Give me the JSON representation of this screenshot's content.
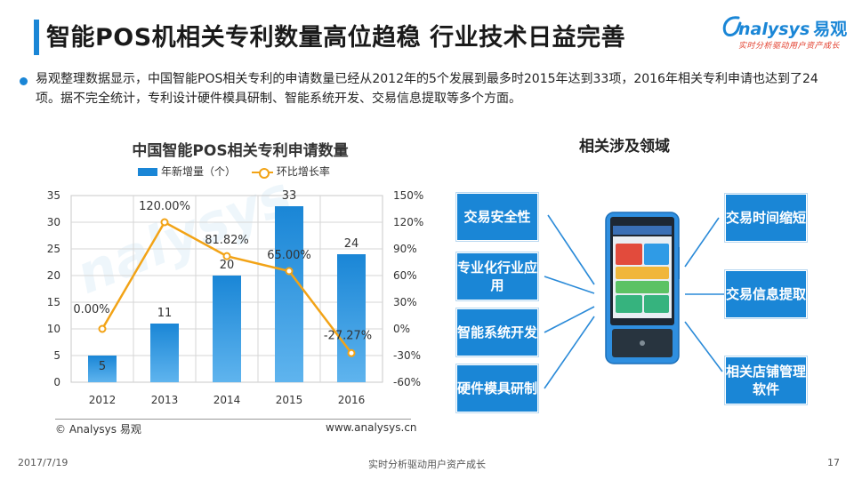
{
  "header": {
    "title": "智能POS机相关专利数量高位趋稳 行业技术日益完善",
    "logo_text": "nalysys",
    "logo_cn": "易观",
    "logo_sub": "实时分析驱动用户资产成长"
  },
  "description": "易观整理数据显示，中国智能POS相关专利的申请数量已经从2012年的5个发展到最多时2015年达到33项，2016年相关专利申请也达到了24项。据不完全统计，专利设计硬件模具研制、智能系统开发、交易信息提取等多个方面。",
  "chart_data": {
    "type": "bar",
    "title": "中国智能POS相关专利申请数量",
    "categories": [
      "2012",
      "2013",
      "2014",
      "2015",
      "2016"
    ],
    "series": [
      {
        "name": "年新增量（个）",
        "type": "bar",
        "values": [
          5,
          11,
          20,
          33,
          24
        ],
        "labels": [
          "5",
          "11",
          "20",
          "33",
          "24"
        ],
        "color": "#1a86d6"
      },
      {
        "name": "环比增长率",
        "type": "line",
        "axis": "right",
        "values": [
          0.0,
          120.0,
          81.82,
          65.0,
          -27.27
        ],
        "labels": [
          "0.00%",
          "120.00%",
          "81.82%",
          "65.00%",
          "-27.27%"
        ],
        "color": "#f2a316"
      }
    ],
    "y_left": {
      "min": 0,
      "max": 35,
      "ticks": [
        "0",
        "5",
        "10",
        "15",
        "20",
        "25",
        "30",
        "35"
      ]
    },
    "y_right": {
      "min": -60,
      "max": 150,
      "ticks": [
        "-60%",
        "-30%",
        "0%",
        "30%",
        "60%",
        "90%",
        "120%",
        "150%"
      ]
    },
    "grid": true,
    "legend": "top"
  },
  "source": {
    "left": "© Analysys 易观",
    "right": "www.analysys.cn"
  },
  "domains": {
    "title": "相关涉及领域",
    "left": [
      "交易安全性",
      "专业化行业应用",
      "智能系统开发",
      "硬件模具研制"
    ],
    "right": [
      "交易时间缩短",
      "交易信息提取",
      "相关店铺管理软件"
    ]
  },
  "footer": {
    "date": "2017/7/19",
    "center": "实时分析驱动用户资产成长",
    "page": "17"
  },
  "colors": {
    "accent": "#1a86d6",
    "line": "#f2a316"
  }
}
